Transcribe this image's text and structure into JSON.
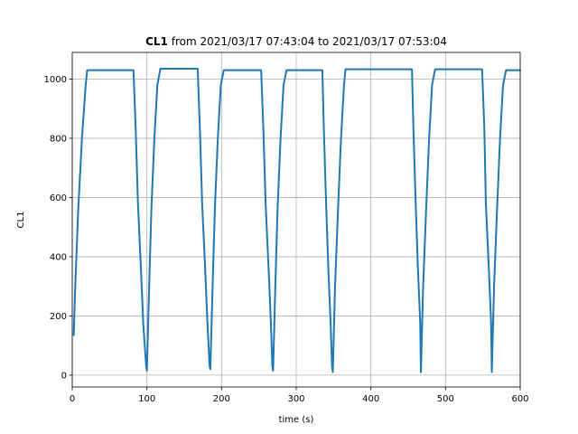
{
  "chart_data": {
    "type": "line",
    "title": {
      "bold": "CL1",
      "rest": " from 2021/03/17 07:43:04 to 2021/03/17 07:53:04"
    },
    "xlabel": "time (s)",
    "ylabel": "CL1",
    "xlim": [
      0,
      600
    ],
    "ylim": [
      -40,
      1090
    ],
    "xticks": [
      0,
      100,
      200,
      300,
      400,
      500,
      600
    ],
    "yticks": [
      0,
      200,
      400,
      600,
      800,
      1000
    ],
    "grid": true,
    "series": [
      {
        "color": "#1f77b4",
        "x": [
          2,
          4,
          8,
          13,
          18,
          20,
          40,
          60,
          82,
          85,
          88,
          92,
          95,
          99,
          100,
          103,
          106,
          110,
          114,
          118,
          140,
          168,
          171,
          174,
          178,
          181,
          184,
          185,
          188,
          191,
          195,
          199,
          203,
          230,
          253,
          256,
          259,
          263,
          266,
          268,
          269,
          272,
          275,
          279,
          283,
          287,
          310,
          335,
          337,
          340,
          343,
          346,
          348,
          349,
          352,
          356,
          360,
          364,
          366,
          400,
          455,
          457,
          460,
          463,
          466,
          467,
          470,
          474,
          478,
          482,
          486,
          520,
          549,
          552,
          554,
          558,
          561,
          562,
          565,
          569,
          573,
          577,
          581,
          600
        ],
        "y": [
          135,
          300,
          560,
          800,
          980,
          1030,
          1030,
          1030,
          1030,
          830,
          580,
          360,
          180,
          30,
          15,
          300,
          560,
          800,
          980,
          1035,
          1035,
          1035,
          830,
          580,
          360,
          180,
          30,
          20,
          300,
          560,
          800,
          980,
          1030,
          1030,
          1030,
          830,
          580,
          360,
          180,
          30,
          15,
          300,
          560,
          800,
          980,
          1030,
          1030,
          1030,
          830,
          580,
          360,
          180,
          30,
          10,
          300,
          560,
          800,
          980,
          1033,
          1033,
          1033,
          830,
          580,
          360,
          180,
          10,
          300,
          560,
          800,
          980,
          1033,
          1033,
          1033,
          830,
          580,
          360,
          180,
          10,
          300,
          560,
          800,
          980,
          1030,
          1030
        ]
      }
    ]
  }
}
